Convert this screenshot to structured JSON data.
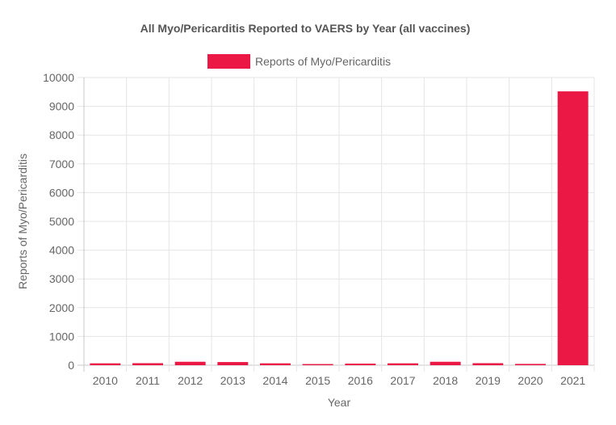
{
  "chart_data": {
    "type": "bar",
    "title": "All Myo/Pericarditis Reported to VAERS by Year (all vaccines)",
    "xlabel": "Year",
    "ylabel": "Reports of Myo/Pericarditis",
    "categories": [
      "2010",
      "2011",
      "2012",
      "2013",
      "2014",
      "2015",
      "2016",
      "2017",
      "2018",
      "2019",
      "2020",
      "2021"
    ],
    "series": [
      {
        "name": "Reports of Myo/Pericarditis",
        "color": "#eb1745",
        "values": [
          65,
          70,
          120,
          110,
          65,
          40,
          55,
          65,
          120,
          70,
          45,
          9520
        ]
      }
    ],
    "ylim": [
      0,
      10000
    ],
    "yticks": [
      "0",
      "1000",
      "2000",
      "3000",
      "4000",
      "5000",
      "6000",
      "7000",
      "8000",
      "9000",
      "10000"
    ],
    "grid": true,
    "legend_position": "top-center"
  }
}
